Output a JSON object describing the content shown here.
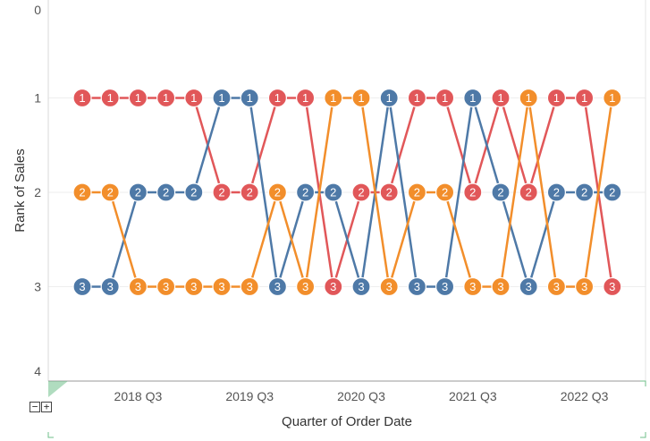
{
  "chart_data": {
    "type": "line",
    "xlabel": "Quarter of Order Date",
    "ylabel": "Rank of Sales",
    "x_tick_labels": [
      "2018 Q3",
      "2019 Q3",
      "2020 Q3",
      "2021 Q3",
      "2022 Q3"
    ],
    "y_ticks": [
      0,
      1,
      2,
      3,
      4
    ],
    "ylim": [
      0,
      4
    ],
    "y_reversed": true,
    "categories": [
      "2018 Q1",
      "2018 Q2",
      "2018 Q3",
      "2018 Q4",
      "2019 Q1",
      "2019 Q2",
      "2019 Q3",
      "2019 Q4",
      "2020 Q1",
      "2020 Q2",
      "2020 Q3",
      "2020 Q4",
      "2021 Q1",
      "2021 Q2",
      "2021 Q3",
      "2021 Q4",
      "2022 Q1",
      "2022 Q2",
      "2022 Q3",
      "2022 Q4"
    ],
    "point_labels": "rank value",
    "grid": "horizontal",
    "series": [
      {
        "color": "#e15759",
        "values": [
          1,
          1,
          1,
          1,
          1,
          2,
          2,
          1,
          1,
          3,
          2,
          2,
          1,
          1,
          2,
          1,
          2,
          1,
          1,
          3
        ]
      },
      {
        "color": "#4e79a7",
        "values": [
          3,
          3,
          2,
          2,
          2,
          1,
          1,
          3,
          2,
          2,
          3,
          1,
          3,
          3,
          1,
          2,
          3,
          2,
          2,
          2
        ]
      },
      {
        "color": "#f28e2b",
        "values": [
          2,
          2,
          3,
          3,
          3,
          3,
          3,
          2,
          3,
          1,
          1,
          3,
          2,
          2,
          3,
          3,
          1,
          3,
          3,
          1
        ]
      }
    ]
  },
  "controls": {
    "zoom_out": "−",
    "zoom_in": "+"
  }
}
